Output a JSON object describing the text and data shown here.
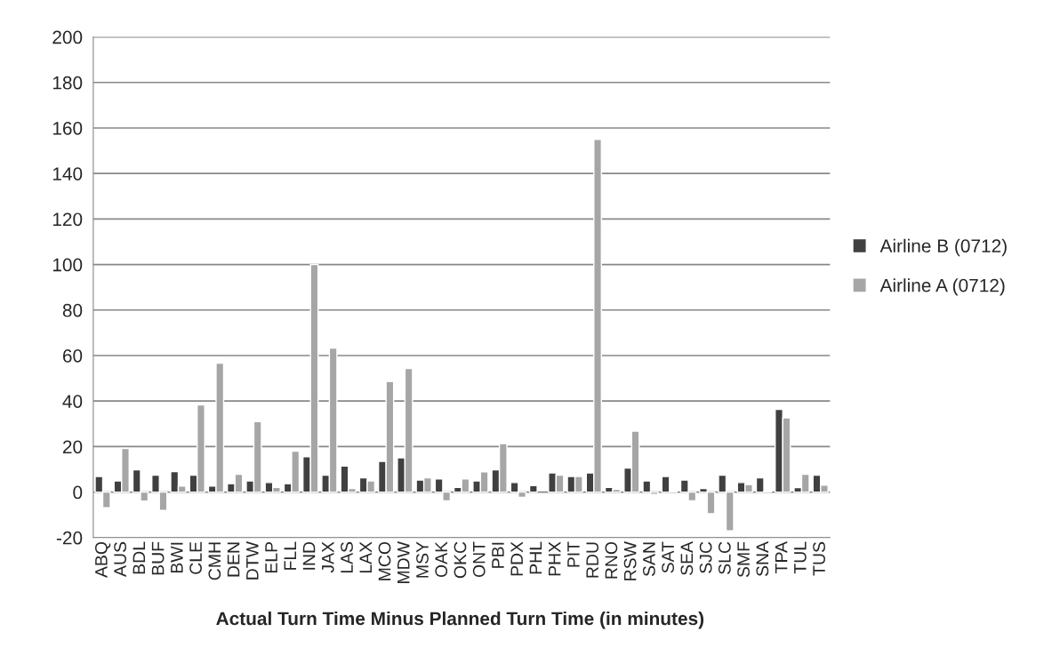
{
  "chart_data": {
    "type": "bar",
    "xlabel": "Actual Turn Time Minus Planned Turn Time (in minutes)",
    "categories": [
      "ABQ",
      "AUS",
      "BDL",
      "BUF",
      "BWI",
      "CLE",
      "CMH",
      "DEN",
      "DTW",
      "ELP",
      "FLL",
      "IND",
      "JAX",
      "LAS",
      "LAX",
      "MCO",
      "MDW",
      "MSY",
      "OAK",
      "OKC",
      "ONT",
      "PBI",
      "PDX",
      "PHL",
      "PHX",
      "PIT",
      "RDU",
      "RNO",
      "RSW",
      "SAN",
      "SAT",
      "SEA",
      "SJC",
      "SLC",
      "SMF",
      "SNA",
      "TPA",
      "TUL",
      "TUS"
    ],
    "series": [
      {
        "name": "Airline B (0712)",
        "color": "#404040",
        "values": [
          6.9,
          4.9,
          9.8,
          7.4,
          9.0,
          7.4,
          2.7,
          3.7,
          4.9,
          4.2,
          3.7,
          15.5,
          7.4,
          11.4,
          6.3,
          13.5,
          15.1,
          5.3,
          5.8,
          2.1,
          4.9,
          9.8,
          4.2,
          2.8,
          8.4,
          6.9,
          8.4,
          2.1,
          10.6,
          4.9,
          6.9,
          5.3,
          1.6,
          7.4,
          4.2,
          6.3,
          36.3,
          2.0,
          7.4
        ]
      },
      {
        "name": "Airline A (0712)",
        "color": "#a6a6a6",
        "values": [
          -6.9,
          19.2,
          -3.9,
          -8.0,
          2.7,
          38.3,
          56.7,
          7.8,
          31.0,
          2.1,
          18.0,
          100.0,
          63.3,
          1.6,
          4.9,
          48.6,
          54.3,
          6.3,
          -3.8,
          5.8,
          8.9,
          21.3,
          -2.3,
          null,
          7.4,
          6.9,
          155.0,
          1.2,
          26.8,
          -1.0,
          0.4,
          -3.8,
          -9.5,
          -17.0,
          3.3,
          0.4,
          32.6,
          7.8,
          3.0
        ]
      }
    ],
    "ylim": [
      -20,
      200
    ],
    "yticks": [
      -20,
      0,
      20,
      40,
      60,
      80,
      100,
      120,
      140,
      160,
      180,
      200
    ],
    "grid": "y",
    "legend": "right"
  }
}
